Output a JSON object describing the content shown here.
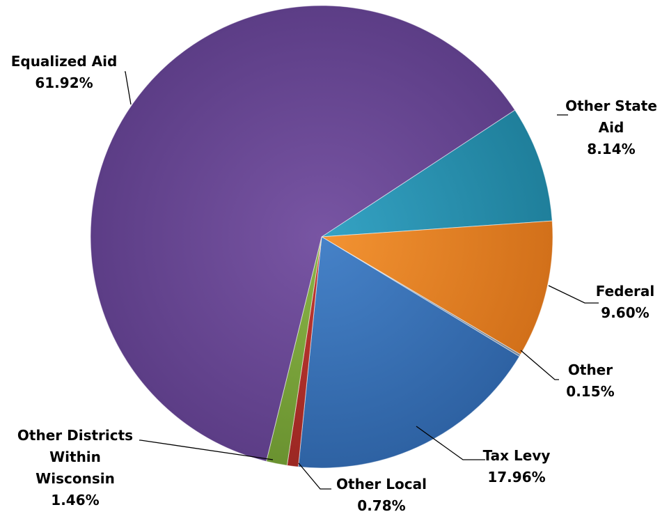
{
  "chart_data": {
    "type": "pie",
    "title": "",
    "slices": [
      {
        "name_lines": [
          "Other State",
          "Aid"
        ],
        "value": 8.14,
        "label": "8.14%",
        "color": "#35a3c4",
        "color_dark": "#1f7f9b"
      },
      {
        "name_lines": [
          "Federal"
        ],
        "value": 9.6,
        "label": "9.60%",
        "color": "#f39332",
        "color_dark": "#d2701a"
      },
      {
        "name_lines": [
          "Other"
        ],
        "value": 0.15,
        "label": "0.15%",
        "color": "#9aa8b8",
        "color_dark": "#778596"
      },
      {
        "name_lines": [
          "Tax Levy"
        ],
        "value": 17.96,
        "label": "17.96%",
        "color": "#4682c8",
        "color_dark": "#2e62a3"
      },
      {
        "name_lines": [
          "Other Local"
        ],
        "value": 0.78,
        "label": "0.78%",
        "color": "#c43a33",
        "color_dark": "#9b2722"
      },
      {
        "name_lines": [
          "Other Districts",
          "Within",
          "Wisconsin"
        ],
        "value": 1.46,
        "label": "1.46%",
        "color": "#8bb547",
        "color_dark": "#6a9230"
      },
      {
        "name_lines": [
          "Equalized Aid"
        ],
        "value": 61.92,
        "label": "61.92%",
        "color": "#7855a3",
        "color_dark": "#5c3d86"
      }
    ],
    "legend": "none",
    "data_labels": "outside with leader lines"
  }
}
